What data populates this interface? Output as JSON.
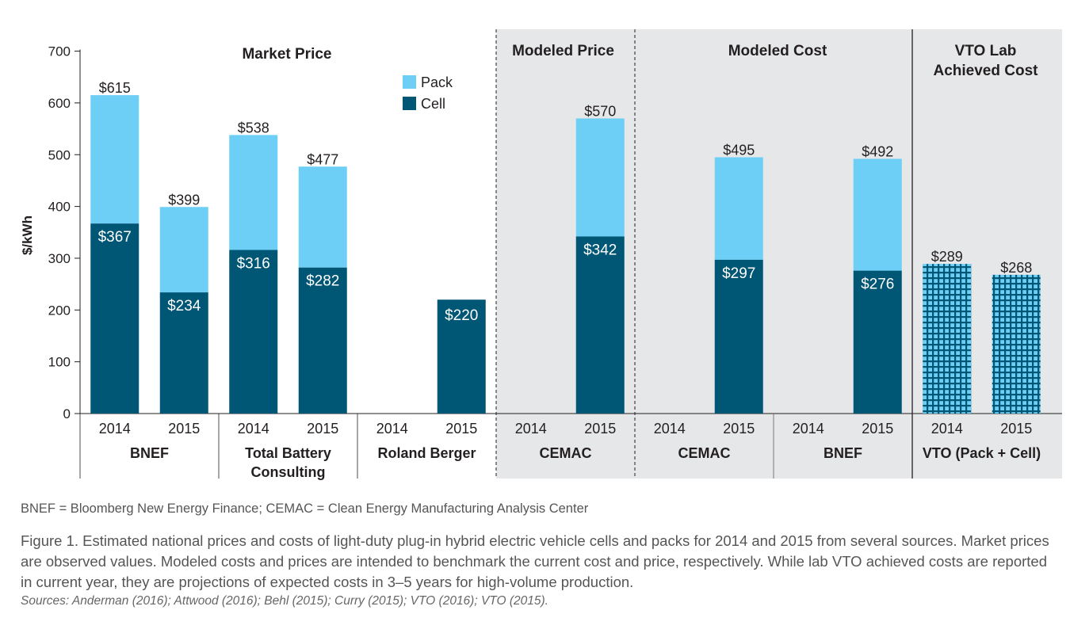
{
  "chart_data": {
    "type": "bar",
    "stacked": true,
    "ylabel": "$/kWh",
    "ylim": [
      0,
      700
    ],
    "yticks": [
      0,
      100,
      200,
      300,
      400,
      500,
      600,
      700
    ],
    "legend": {
      "placement": "top-center",
      "entries": [
        "Pack",
        "Cell"
      ]
    },
    "colors": {
      "pack": "#6dcff6",
      "cell": "#005675",
      "panel": "#e6e7e8",
      "pattern_line": "#005675"
    },
    "groups": [
      {
        "label": "Market Price",
        "shaded": false
      },
      {
        "label": "Modeled Price",
        "shaded": true
      },
      {
        "label": "Modeled Cost",
        "shaded": true
      },
      {
        "label": "VTO Lab Achieved Cost",
        "label_lines": [
          "VTO Lab",
          "Achieved Cost"
        ],
        "shaded": true
      }
    ],
    "sources": [
      {
        "label": "BNEF",
        "label_lines": [
          "BNEF"
        ]
      },
      {
        "label": "Total Battery Consulting",
        "label_lines": [
          "Total Battery",
          "Consulting"
        ]
      },
      {
        "label": "Roland Berger",
        "label_lines": [
          "Roland Berger"
        ]
      },
      {
        "label": "CEMAC",
        "label_lines": [
          "CEMAC"
        ]
      },
      {
        "label": "CEMAC",
        "label_lines": [
          "CEMAC"
        ]
      },
      {
        "label": "BNEF",
        "label_lines": [
          "BNEF"
        ]
      },
      {
        "label": "VTO (Pack + Cell)",
        "label_lines": [
          "VTO (Pack + Cell)"
        ]
      }
    ],
    "bars": [
      {
        "year": "2014",
        "source": 0,
        "group": 0,
        "cell": 367,
        "total": 615,
        "cell_label": "$367",
        "total_label": "$615"
      },
      {
        "year": "2015",
        "source": 0,
        "group": 0,
        "cell": 234,
        "total": 399,
        "cell_label": "$234",
        "total_label": "$399"
      },
      {
        "year": "2014",
        "source": 1,
        "group": 0,
        "cell": 316,
        "total": 538,
        "cell_label": "$316",
        "total_label": "$538"
      },
      {
        "year": "2015",
        "source": 1,
        "group": 0,
        "cell": 282,
        "total": 477,
        "cell_label": "$282",
        "total_label": "$477"
      },
      {
        "year": "2014",
        "source": 2,
        "group": 0,
        "cell": null,
        "total": null
      },
      {
        "year": "2015",
        "source": 2,
        "group": 0,
        "cell": 220,
        "total": 220,
        "cell_label": "$220",
        "cell_label_dark": true
      },
      {
        "year": "2014",
        "source": 3,
        "group": 1,
        "cell": null,
        "total": null
      },
      {
        "year": "2015",
        "source": 3,
        "group": 1,
        "cell": 342,
        "total": 570,
        "cell_label": "$342",
        "total_label": "$570"
      },
      {
        "year": "2014",
        "source": 4,
        "group": 2,
        "cell": null,
        "total": null
      },
      {
        "year": "2015",
        "source": 4,
        "group": 2,
        "cell": 297,
        "total": 495,
        "cell_label": "$297",
        "total_label": "$495"
      },
      {
        "year": "2014",
        "source": 5,
        "group": 2,
        "cell": null,
        "total": null
      },
      {
        "year": "2015",
        "source": 5,
        "group": 2,
        "cell": 276,
        "total": 492,
        "cell_label": "$276",
        "total_label": "$492"
      },
      {
        "year": "2014",
        "source": 6,
        "group": 3,
        "combined": 289,
        "total": 289,
        "total_label": "$289"
      },
      {
        "year": "2015",
        "source": 6,
        "group": 3,
        "combined": 268,
        "total": 268,
        "total_label": "$268"
      }
    ]
  },
  "notes": {
    "abbrev": "BNEF = Bloomberg New Energy Finance; CEMAC = Clean Energy Manufacturing Analysis Center",
    "caption": "Figure 1. Estimated national prices and costs of light-duty plug-in hybrid electric vehicle cells and packs for 2014 and 2015 from several sources. Market prices are observed values. Modeled costs and prices are intended to benchmark the current cost and price, respectively. While lab VTO achieved costs are reported in current year, they are projections of expected costs in 3–5 years for high-volume production.",
    "sources": "Sources: Anderman (2016); Attwood (2016); Behl (2015); Curry (2015); VTO (2016); VTO (2015)."
  }
}
